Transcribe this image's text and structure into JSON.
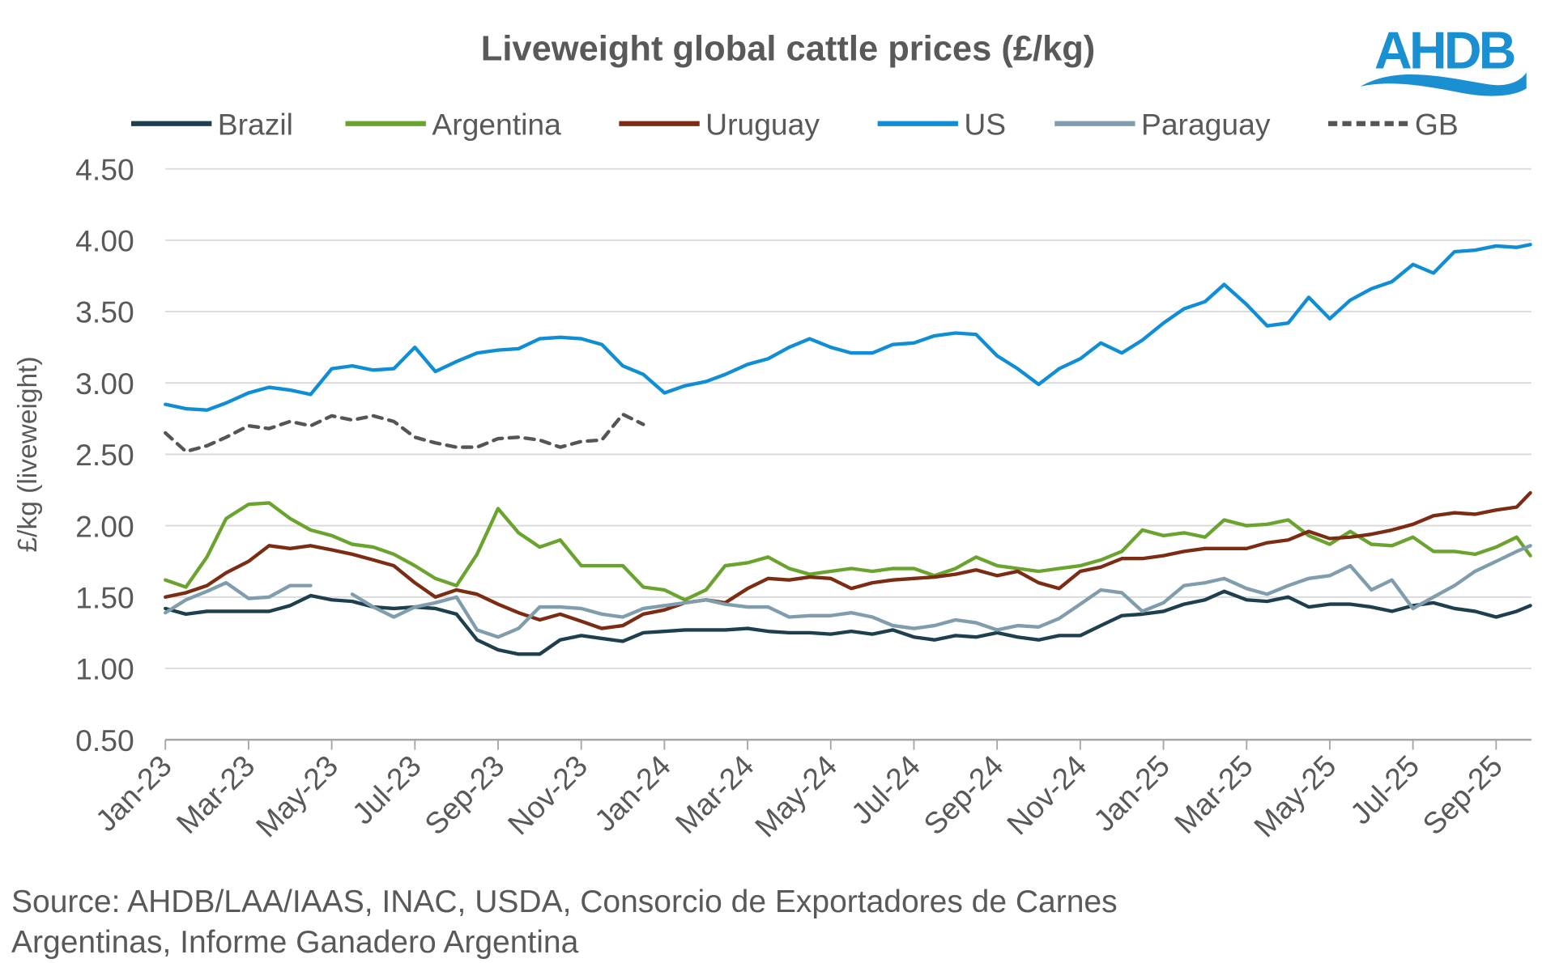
{
  "logo_text": "AHDB",
  "source": {
    "line1": "Source: AHDB/LAA/IAAS, INAC, USDA, Consorcio de Exportadores de Carnes",
    "line2": "Argentinas, Informe Ganadero Argentina"
  },
  "chart_data": {
    "type": "line",
    "title": "Liveweight global cattle prices (£/kg)",
    "xlabel": "",
    "ylabel": "£/kg (liveweight)",
    "ylim": [
      0.5,
      4.5
    ],
    "yticks": [
      "0.50",
      "1.00",
      "1.50",
      "2.00",
      "2.50",
      "3.00",
      "3.50",
      "4.00",
      "4.50"
    ],
    "xticks": [
      "Jan-23",
      "Mar-23",
      "May-23",
      "Jul-23",
      "Sep-23",
      "Nov-23",
      "Jan-24",
      "Mar-24",
      "May-24",
      "Jul-24",
      "Sep-24",
      "Nov-24",
      "Jan-25",
      "Mar-25",
      "May-25",
      "Jul-25",
      "Sep-25"
    ],
    "grid": "horizontal",
    "legend": "top",
    "x": [
      "2023-01-01",
      "2023-01-16",
      "2023-02-01",
      "2023-02-15",
      "2023-03-01",
      "2023-03-16",
      "2023-04-01",
      "2023-04-16",
      "2023-05-01",
      "2023-05-16",
      "2023-06-01",
      "2023-06-16",
      "2023-07-01",
      "2023-07-16",
      "2023-08-01",
      "2023-08-16",
      "2023-09-01",
      "2023-09-16",
      "2023-10-01",
      "2023-10-16",
      "2023-11-01",
      "2023-11-16",
      "2023-12-01",
      "2023-12-16",
      "2024-01-01",
      "2024-01-16",
      "2024-02-01",
      "2024-02-15",
      "2024-03-01",
      "2024-03-16",
      "2024-04-01",
      "2024-04-16",
      "2024-05-01",
      "2024-05-16",
      "2024-06-01",
      "2024-06-16",
      "2024-07-01",
      "2024-07-16",
      "2024-08-01",
      "2024-08-16",
      "2024-09-01",
      "2024-09-16",
      "2024-10-01",
      "2024-10-16",
      "2024-11-01",
      "2024-11-16",
      "2024-12-01",
      "2024-12-16",
      "2025-01-01",
      "2025-01-16",
      "2025-02-01",
      "2025-02-15",
      "2025-03-01",
      "2025-03-16",
      "2025-04-01",
      "2025-04-16",
      "2025-05-01",
      "2025-05-16",
      "2025-06-01",
      "2025-06-16",
      "2025-07-01",
      "2025-07-16",
      "2025-08-01",
      "2025-08-16",
      "2025-09-01",
      "2025-09-16",
      "2025-09-26"
    ],
    "series": [
      {
        "name": "Brazil",
        "color": "#1e3f4e",
        "dash": false,
        "values": [
          1.42,
          1.38,
          1.4,
          1.4,
          1.4,
          1.4,
          1.44,
          1.51,
          1.48,
          1.47,
          1.43,
          1.42,
          1.43,
          1.42,
          1.38,
          1.2,
          1.13,
          1.1,
          1.1,
          1.2,
          1.23,
          1.21,
          1.19,
          1.25,
          1.26,
          1.27,
          1.27,
          1.27,
          1.28,
          1.26,
          1.25,
          1.25,
          1.24,
          1.26,
          1.24,
          1.27,
          1.22,
          1.2,
          1.23,
          1.22,
          1.25,
          1.22,
          1.2,
          1.23,
          1.23,
          1.3,
          1.37,
          1.38,
          1.4,
          1.45,
          1.48,
          1.54,
          1.48,
          1.47,
          1.5,
          1.43,
          1.45,
          1.45,
          1.43,
          1.4,
          1.44,
          1.46,
          1.42,
          1.4,
          1.36,
          1.4,
          1.44
        ]
      },
      {
        "name": "Argentina",
        "color": "#6aa42f",
        "dash": false,
        "values": [
          1.62,
          1.57,
          1.78,
          2.05,
          2.15,
          2.16,
          2.05,
          1.97,
          1.93,
          1.87,
          1.85,
          1.8,
          1.72,
          1.63,
          1.58,
          1.8,
          2.12,
          1.95,
          1.85,
          1.9,
          1.72,
          1.72,
          1.72,
          1.57,
          1.55,
          1.48,
          1.55,
          1.72,
          1.74,
          1.78,
          1.7,
          1.66,
          1.68,
          1.7,
          1.68,
          1.7,
          1.7,
          1.65,
          1.7,
          1.78,
          1.72,
          1.7,
          1.68,
          1.7,
          1.72,
          1.76,
          1.82,
          1.97,
          1.93,
          1.95,
          1.92,
          2.04,
          2.0,
          2.01,
          2.04,
          1.93,
          1.87,
          1.96,
          1.87,
          1.86,
          1.92,
          1.82,
          1.82,
          1.8,
          1.85,
          1.92,
          1.79
        ]
      },
      {
        "name": "Uruguay",
        "color": "#7b2c12",
        "dash": false,
        "values": [
          1.5,
          1.53,
          1.58,
          1.67,
          1.75,
          1.86,
          1.84,
          1.86,
          1.83,
          1.8,
          1.76,
          1.72,
          1.6,
          1.5,
          1.55,
          1.52,
          1.45,
          1.39,
          1.34,
          1.38,
          1.33,
          1.28,
          1.3,
          1.38,
          1.41,
          1.46,
          1.48,
          1.46,
          1.56,
          1.63,
          1.62,
          1.64,
          1.63,
          1.56,
          1.6,
          1.62,
          1.63,
          1.64,
          1.66,
          1.69,
          1.65,
          1.68,
          1.6,
          1.56,
          1.68,
          1.71,
          1.77,
          1.77,
          1.79,
          1.82,
          1.84,
          1.84,
          1.84,
          1.88,
          1.9,
          1.96,
          1.91,
          1.92,
          1.94,
          1.97,
          2.01,
          2.07,
          2.09,
          2.08,
          2.11,
          2.13,
          2.23
        ]
      },
      {
        "name": "US",
        "color": "#0f8ed6",
        "dash": false,
        "values": [
          2.85,
          2.82,
          2.81,
          2.86,
          2.93,
          2.97,
          2.95,
          2.92,
          3.1,
          3.12,
          3.09,
          3.1,
          3.25,
          3.08,
          3.15,
          3.21,
          3.23,
          3.24,
          3.31,
          3.32,
          3.31,
          3.27,
          3.12,
          3.06,
          2.93,
          2.98,
          3.01,
          3.06,
          3.13,
          3.17,
          3.25,
          3.31,
          3.25,
          3.21,
          3.21,
          3.27,
          3.28,
          3.33,
          3.35,
          3.34,
          3.19,
          3.1,
          2.99,
          3.1,
          3.17,
          3.28,
          3.21,
          3.3,
          3.42,
          3.52,
          3.57,
          3.69,
          3.55,
          3.4,
          3.42,
          3.6,
          3.45,
          3.58,
          3.66,
          3.71,
          3.83,
          3.77,
          3.92,
          3.93,
          3.96,
          3.95,
          3.97
        ]
      },
      {
        "name": "Paraguay",
        "color": "#7f9dad",
        "dash": false,
        "values": [
          1.39,
          1.48,
          1.54,
          1.6,
          1.49,
          1.5,
          1.58,
          1.58,
          null,
          1.52,
          1.43,
          1.36,
          1.43,
          1.46,
          1.5,
          1.27,
          1.22,
          1.28,
          1.43,
          1.43,
          1.42,
          1.38,
          1.36,
          1.42,
          1.44,
          1.46,
          1.48,
          1.45,
          1.43,
          1.43,
          1.36,
          1.37,
          1.37,
          1.39,
          1.36,
          1.3,
          1.28,
          1.3,
          1.34,
          1.32,
          1.27,
          1.3,
          1.29,
          1.35,
          1.45,
          1.55,
          1.53,
          1.4,
          1.46,
          1.58,
          1.6,
          1.63,
          1.56,
          1.52,
          1.58,
          1.63,
          1.65,
          1.72,
          1.55,
          1.62,
          1.42,
          1.5,
          1.58,
          1.68,
          1.75,
          1.82,
          1.86
        ]
      },
      {
        "name": "GB",
        "color": "#555555",
        "dash": true,
        "values": [
          2.65,
          2.52,
          2.56,
          2.62,
          2.7,
          2.68,
          2.73,
          2.7,
          2.77,
          2.74,
          2.77,
          2.73,
          2.62,
          2.58,
          2.55,
          2.55,
          2.61,
          2.62,
          2.6,
          2.55,
          2.59,
          2.6,
          2.78,
          2.71,
          null,
          null,
          null,
          null,
          null,
          null,
          null,
          null,
          null,
          null,
          null,
          null,
          null,
          null,
          null,
          null,
          null,
          null,
          null,
          null,
          null,
          null,
          null,
          null,
          null,
          null,
          null,
          null,
          null,
          null,
          null,
          null,
          null,
          null,
          null,
          null,
          null,
          null,
          null,
          null,
          null,
          null,
          null
        ]
      }
    ]
  }
}
